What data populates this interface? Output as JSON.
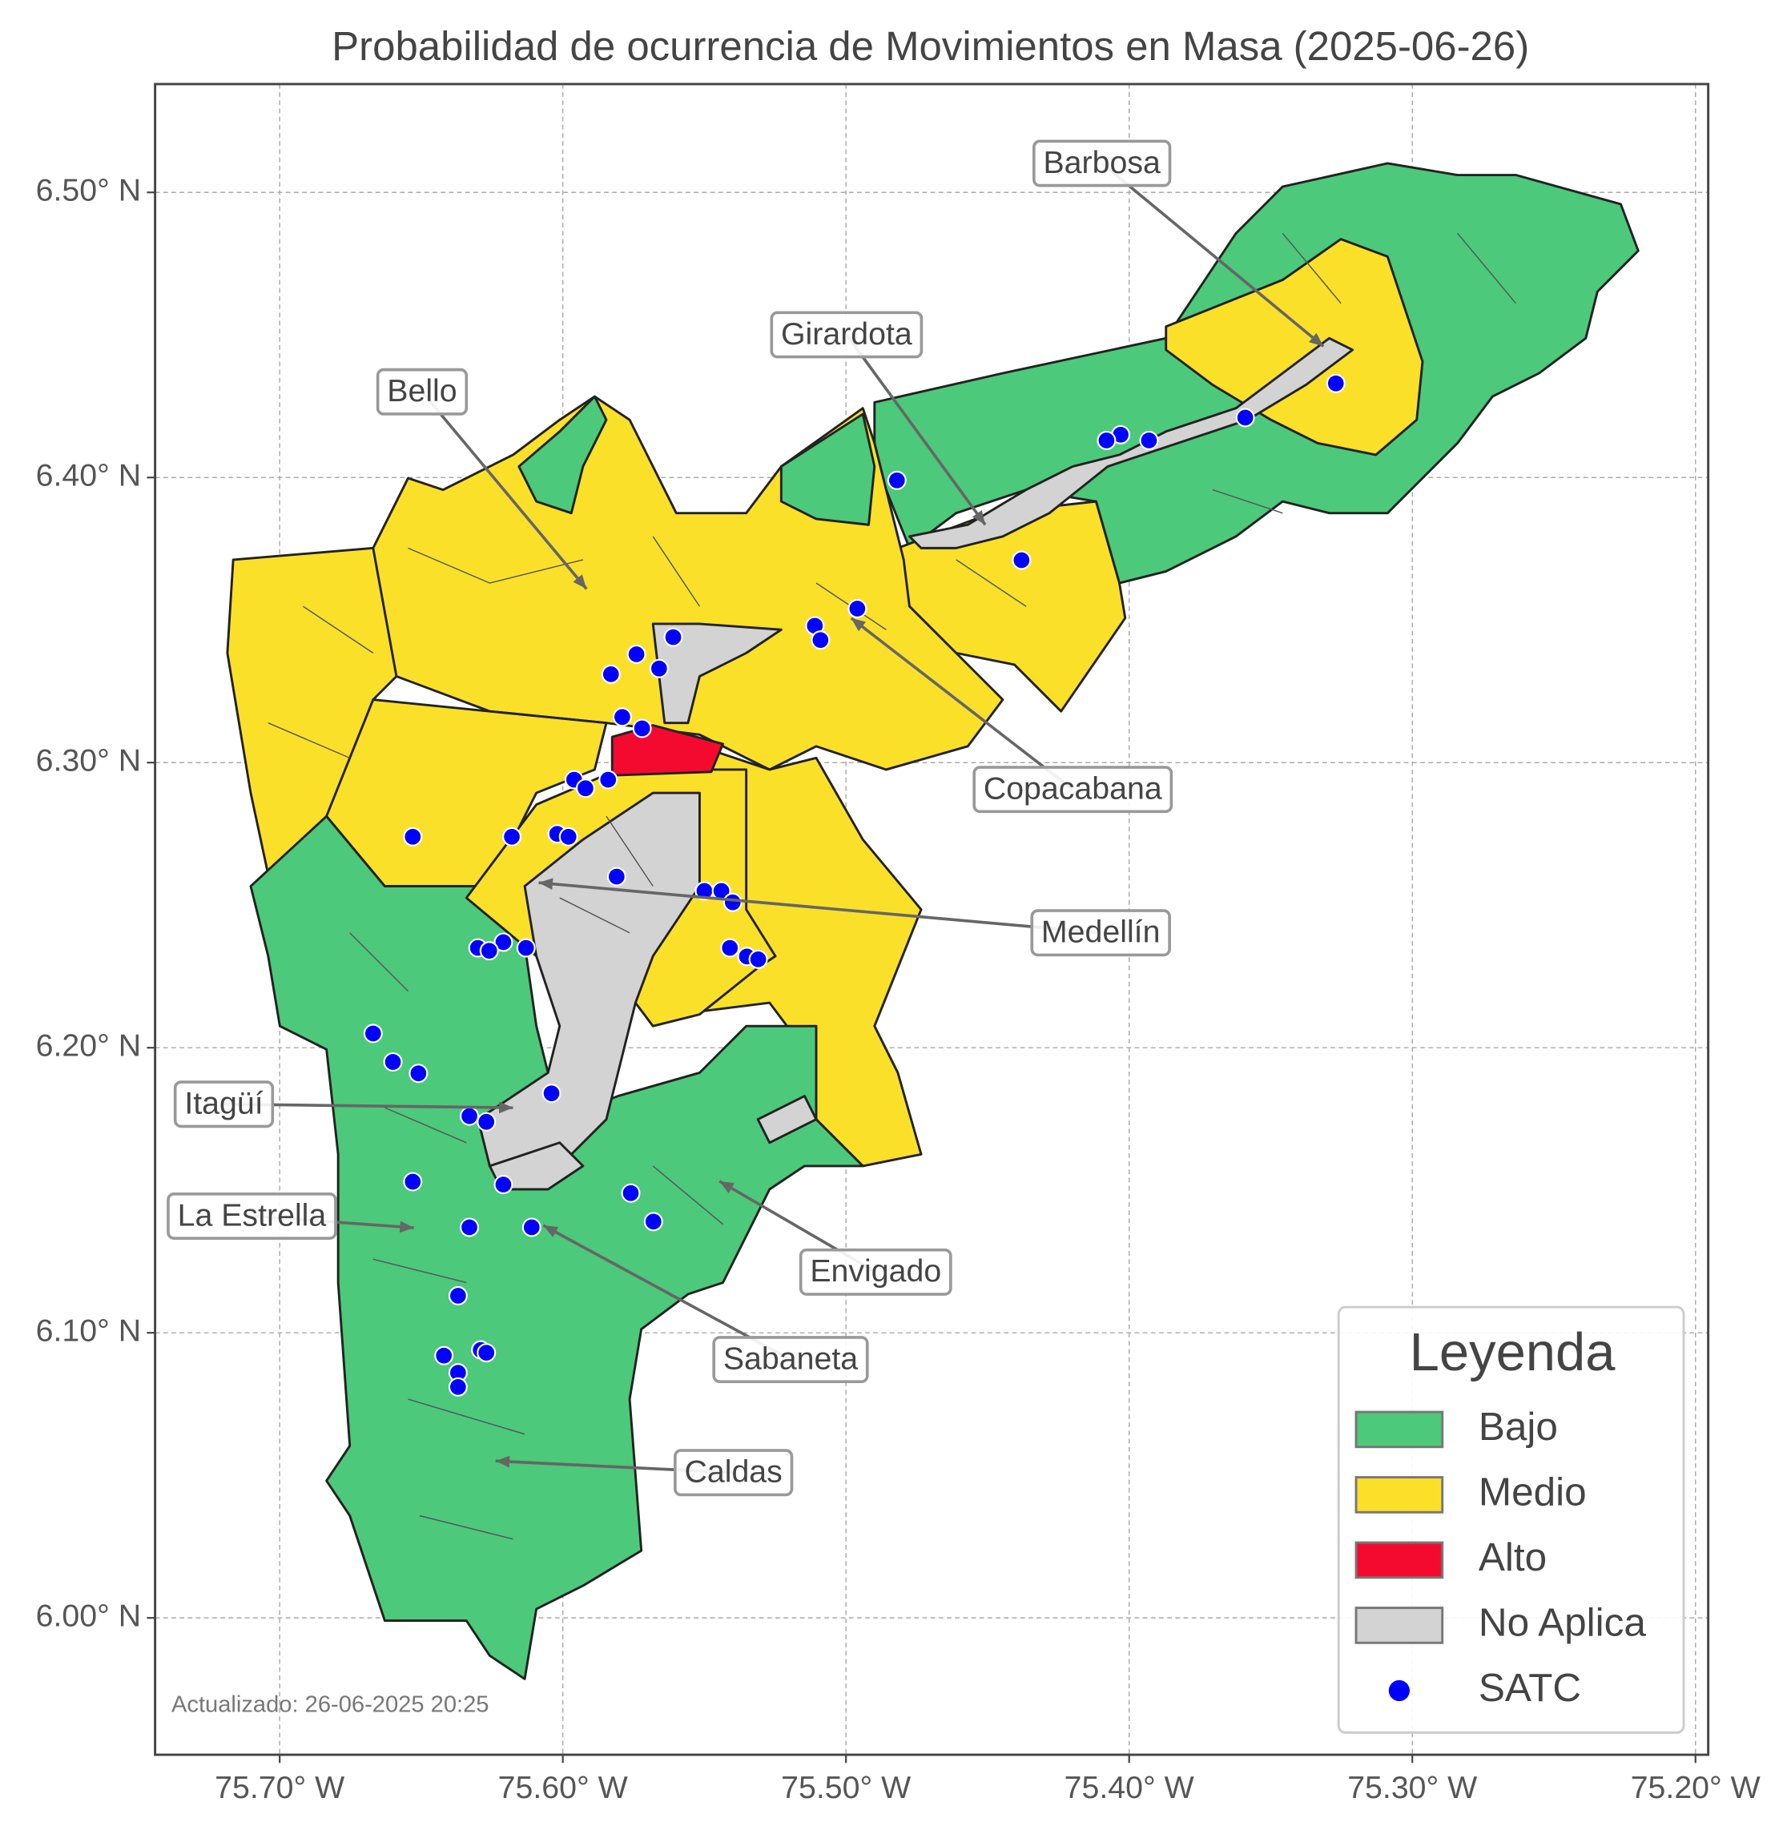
{
  "chart_data": {
    "type": "map",
    "title": "Probabilidad de ocurrencia de Movimientos en Masa (2025-06-26)",
    "xlim": [
      -75.744,
      -75.1955
    ],
    "ylim": [
      5.952,
      6.538
    ],
    "xticks": [
      {
        "value": -75.7,
        "label": "75.70° W"
      },
      {
        "value": -75.6,
        "label": "75.60° W"
      },
      {
        "value": -75.5,
        "label": "75.50° W"
      },
      {
        "value": -75.4,
        "label": "75.40° W"
      },
      {
        "value": -75.3,
        "label": "75.30° W"
      },
      {
        "value": -75.2,
        "label": "75.20° W"
      }
    ],
    "yticks": [
      {
        "value": 6.0,
        "label": "6.00° N"
      },
      {
        "value": 6.1,
        "label": "6.10° N"
      },
      {
        "value": 6.2,
        "label": "6.20° N"
      },
      {
        "value": 6.3,
        "label": "6.30° N"
      },
      {
        "value": 6.4,
        "label": "6.40° N"
      },
      {
        "value": 6.5,
        "label": "6.50° N"
      }
    ],
    "grid": true,
    "legend": {
      "title": "Leyenda",
      "position": "lower right"
    },
    "regions": [
      {
        "name": "Bajo",
        "color": "#4cc97a"
      },
      {
        "name": "Medio",
        "color": "#fbe02a"
      },
      {
        "name": "Alto",
        "color": "#f50a2f"
      },
      {
        "name": "No Aplica",
        "color": "#d3d3d3"
      }
    ],
    "series": [
      {
        "name": "SATC",
        "color": "#0000ff",
        "x": [
          -75.327,
          -75.359,
          -75.393,
          -75.403,
          -75.408,
          -75.482,
          -75.438,
          -75.496,
          -75.511,
          -75.509,
          -75.561,
          -75.574,
          -75.566,
          -75.583,
          -75.579,
          -75.572,
          -75.596,
          -75.592,
          -75.584,
          -75.653,
          -75.618,
          -75.602,
          -75.598,
          -75.581,
          -75.55,
          -75.544,
          -75.54,
          -75.541,
          -75.535,
          -75.531,
          -75.621,
          -75.63,
          -75.626,
          -75.613,
          -75.667,
          -75.66,
          -75.651,
          -75.604,
          -75.633,
          -75.627,
          -75.653,
          -75.621,
          -75.576,
          -75.568,
          -75.633,
          -75.611,
          -75.637,
          -75.642,
          -75.629,
          -75.627,
          -75.637,
          -75.637
        ],
        "y": [
          6.433,
          6.421,
          6.413,
          6.415,
          6.413,
          6.399,
          6.371,
          6.354,
          6.348,
          6.343,
          6.344,
          6.338,
          6.333,
          6.331,
          6.316,
          6.312,
          6.294,
          6.291,
          6.294,
          6.274,
          6.274,
          6.275,
          6.274,
          6.26,
          6.255,
          6.255,
          6.251,
          6.235,
          6.232,
          6.231,
          6.237,
          6.235,
          6.234,
          6.235,
          6.205,
          6.195,
          6.191,
          6.184,
          6.176,
          6.174,
          6.153,
          6.152,
          6.149,
          6.139,
          6.137,
          6.137,
          6.113,
          6.092,
          6.094,
          6.093,
          6.086,
          6.081
        ]
      }
    ],
    "annotations": [
      "Barbosa",
      "Girardota",
      "Bello",
      "Copacabana",
      "Medellín",
      "Itagüí",
      "La Estrella",
      "Envigado",
      "Sabaneta",
      "Caldas"
    ],
    "footnote": "Actualizado: 26-06-2025 20:25"
  }
}
